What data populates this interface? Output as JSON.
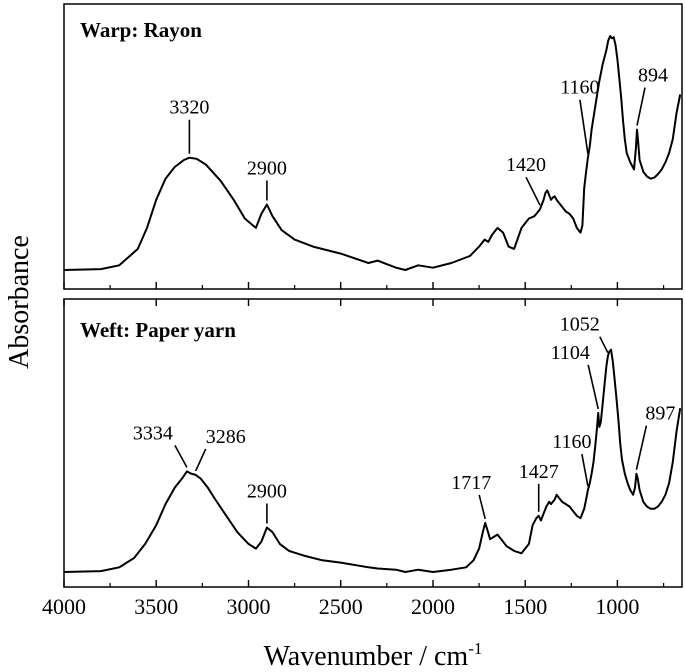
{
  "chart_data": {
    "type": "line",
    "xlabel": "Wavenumber / cm",
    "xlabel_sup": "-1",
    "ylabel": "Absorbance",
    "xlim": [
      4000,
      650
    ],
    "x_ticks": [
      "4000",
      "3500",
      "3000",
      "2500",
      "2000",
      "1500",
      "1000"
    ],
    "x_tick_values": [
      4000,
      3500,
      3000,
      2500,
      2000,
      1500,
      1000
    ],
    "y_ticks_shown": false,
    "panels": [
      {
        "title": "Warp: Rayon",
        "series": [
          {
            "x": [
              4000,
              3800,
              3700,
              3600,
              3550,
              3500,
              3450,
              3400,
              3350,
              3320,
              3280,
              3230,
              3150,
              3080,
              3020,
              2960,
              2930,
              2900,
              2870,
              2820,
              2750,
              2650,
              2500,
              2350,
              2300,
              2200,
              2150,
              2080,
              2000,
              1900,
              1800,
              1750,
              1720,
              1700,
              1680,
              1650,
              1620,
              1590,
              1560,
              1520,
              1480,
              1450,
              1420,
              1400,
              1390,
              1380,
              1370,
              1360,
              1350,
              1340,
              1330,
              1320,
              1300,
              1280,
              1260,
              1240,
              1220,
              1200,
              1190,
              1180,
              1170,
              1160,
              1150,
              1140,
              1120,
              1100,
              1080,
              1060,
              1050,
              1040,
              1030,
              1020,
              1010,
              1000,
              990,
              980,
              970,
              960,
              950,
              930,
              910,
              900,
              894,
              888,
              880,
              860,
              840,
              820,
              800,
              780,
              760,
              740,
              720,
              700,
              680,
              660
            ],
            "y": [
              0.0,
              0.004,
              0.02,
              0.09,
              0.18,
              0.3,
              0.39,
              0.44,
              0.47,
              0.48,
              0.475,
              0.45,
              0.38,
              0.3,
              0.22,
              0.18,
              0.24,
              0.28,
              0.23,
              0.17,
              0.13,
              0.1,
              0.07,
              0.03,
              0.04,
              0.01,
              0.0,
              0.02,
              0.01,
              0.03,
              0.06,
              0.1,
              0.13,
              0.12,
              0.15,
              0.18,
              0.16,
              0.1,
              0.09,
              0.18,
              0.22,
              0.23,
              0.26,
              0.3,
              0.33,
              0.34,
              0.32,
              0.3,
              0.31,
              0.315,
              0.3,
              0.29,
              0.27,
              0.25,
              0.24,
              0.22,
              0.18,
              0.16,
              0.19,
              0.35,
              0.42,
              0.48,
              0.53,
              0.6,
              0.7,
              0.8,
              0.88,
              0.94,
              0.98,
              1.0,
              0.99,
              0.995,
              0.96,
              0.9,
              0.82,
              0.74,
              0.64,
              0.56,
              0.5,
              0.46,
              0.43,
              0.52,
              0.6,
              0.55,
              0.47,
              0.42,
              0.4,
              0.39,
              0.395,
              0.41,
              0.43,
              0.46,
              0.5,
              0.56,
              0.67,
              0.75
            ]
          }
        ],
        "annotations": [
          {
            "label": "3320",
            "x": 3320
          },
          {
            "label": "2900",
            "x": 2900
          },
          {
            "label": "1420",
            "x": 1420
          },
          {
            "label": "1160",
            "x": 1160
          },
          {
            "label": "894",
            "x": 894
          }
        ]
      },
      {
        "title": "Weft: Paper yarn",
        "series": [
          {
            "x": [
              4000,
              3800,
              3700,
              3620,
              3560,
              3500,
              3450,
              3400,
              3360,
              3334,
              3310,
              3286,
              3260,
              3220,
              3180,
              3120,
              3060,
              3000,
              2960,
              2930,
              2900,
              2870,
              2830,
              2780,
              2700,
              2600,
              2500,
              2350,
              2300,
              2200,
              2150,
              2080,
              2000,
              1900,
              1820,
              1780,
              1750,
              1730,
              1717,
              1705,
              1690,
              1670,
              1650,
              1630,
              1600,
              1560,
              1520,
              1480,
              1460,
              1440,
              1427,
              1415,
              1400,
              1385,
              1370,
              1360,
              1340,
              1330,
              1320,
              1300,
              1280,
              1260,
              1240,
              1220,
              1200,
              1180,
              1170,
              1160,
              1150,
              1140,
              1130,
              1120,
              1110,
              1104,
              1098,
              1090,
              1080,
              1070,
              1060,
              1052,
              1045,
              1035,
              1025,
              1015,
              1005,
              995,
              985,
              975,
              960,
              945,
              930,
              915,
              905,
              897,
              890,
              880,
              860,
              840,
              820,
              800,
              780,
              760,
              740,
              720,
              700,
              680,
              660
            ],
            "y": [
              0.0,
              0.004,
              0.02,
              0.06,
              0.12,
              0.2,
              0.29,
              0.36,
              0.4,
              0.43,
              0.42,
              0.415,
              0.4,
              0.36,
              0.31,
              0.24,
              0.17,
              0.12,
              0.1,
              0.13,
              0.19,
              0.17,
              0.12,
              0.09,
              0.07,
              0.05,
              0.04,
              0.02,
              0.015,
              0.01,
              0.0,
              0.01,
              0.0,
              0.01,
              0.02,
              0.05,
              0.1,
              0.17,
              0.21,
              0.18,
              0.14,
              0.15,
              0.16,
              0.14,
              0.11,
              0.09,
              0.08,
              0.12,
              0.2,
              0.23,
              0.24,
              0.22,
              0.25,
              0.28,
              0.3,
              0.29,
              0.31,
              0.33,
              0.32,
              0.3,
              0.29,
              0.28,
              0.26,
              0.24,
              0.23,
              0.27,
              0.31,
              0.35,
              0.38,
              0.42,
              0.47,
              0.54,
              0.62,
              0.68,
              0.62,
              0.64,
              0.72,
              0.8,
              0.88,
              0.92,
              0.94,
              0.95,
              0.9,
              0.82,
              0.74,
              0.65,
              0.55,
              0.48,
              0.42,
              0.38,
              0.35,
              0.33,
              0.36,
              0.42,
              0.4,
              0.35,
              0.3,
              0.28,
              0.27,
              0.27,
              0.28,
              0.3,
              0.33,
              0.38,
              0.47,
              0.6,
              0.7
            ]
          }
        ],
        "annotations": [
          {
            "label": "3334",
            "x": 3334
          },
          {
            "label": "3286",
            "x": 3286
          },
          {
            "label": "2900",
            "x": 2900
          },
          {
            "label": "1717",
            "x": 1717
          },
          {
            "label": "1427",
            "x": 1427
          },
          {
            "label": "1160",
            "x": 1160
          },
          {
            "label": "1104",
            "x": 1104
          },
          {
            "label": "1052",
            "x": 1052
          },
          {
            "label": "897",
            "x": 897
          }
        ]
      }
    ]
  }
}
